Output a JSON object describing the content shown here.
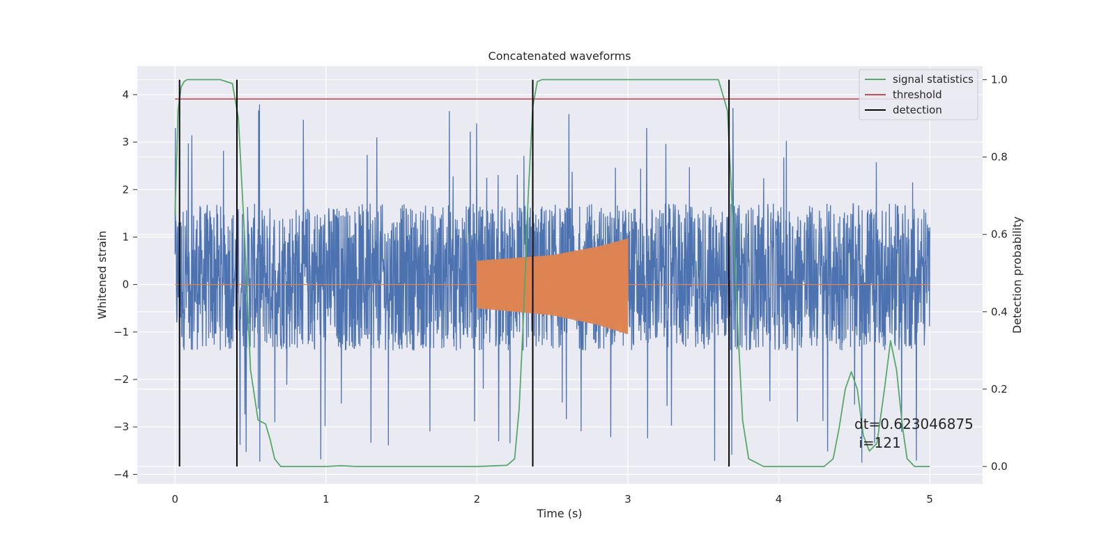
{
  "chart_data": {
    "type": "line",
    "title": "Concatenated waveforms",
    "xlabel": "Time (s)",
    "ylabel": "Whitened strain",
    "ylabel_right": "Detection probability",
    "xlim": [
      -0.25,
      5.35
    ],
    "ylim": [
      -4.2,
      4.6
    ],
    "ylim_right": [
      -0.045,
      1.035
    ],
    "x_ticks": [
      0,
      1,
      2,
      3,
      4,
      5
    ],
    "y_ticks": [
      -4,
      -3,
      -2,
      -1,
      0,
      1,
      2,
      3,
      4
    ],
    "y_ticks_right": [
      0.0,
      0.2,
      0.4,
      0.6,
      0.8,
      1.0
    ],
    "x_tick_labels": [
      "0",
      "1",
      "2",
      "3",
      "4",
      "5"
    ],
    "y_tick_labels": [
      "−4",
      "−3",
      "−2",
      "−1",
      "0",
      "1",
      "2",
      "3",
      "4"
    ],
    "y_tick_labels_right": [
      "0.0",
      "0.2",
      "0.4",
      "0.6",
      "0.8",
      "1.0"
    ],
    "grid": true,
    "legend_position": "top-right",
    "legend": [
      {
        "label": "signal statistics",
        "color": "#55a868"
      },
      {
        "label": "threshold",
        "color": "#c44e52"
      },
      {
        "label": "detection",
        "color": "#000000"
      }
    ],
    "annotation": {
      "line1": "dt=0.623046875",
      "line2": " i=121",
      "x": 4.5,
      "y_right": 0.07
    },
    "series": [
      {
        "axis": "left",
        "color": "#4c72b0",
        "kind": "noise",
        "x_range": [
          0,
          5
        ],
        "typical_amplitude": [
          -1.5,
          2.0
        ],
        "peak_range": [
          -3.8,
          3.85
        ]
      },
      {
        "axis": "left",
        "color": "#dd8452",
        "kind": "chirp",
        "x_range": [
          0,
          5
        ],
        "chirp_x_range": [
          2,
          3
        ],
        "envelope_top": [
          [
            2.0,
            0.5
          ],
          [
            2.5,
            0.62
          ],
          [
            2.8,
            0.8
          ],
          [
            3.0,
            0.97
          ]
        ],
        "envelope_bottom": [
          [
            2.0,
            -0.5
          ],
          [
            2.5,
            -0.65
          ],
          [
            2.8,
            -0.85
          ],
          [
            3.0,
            -1.05
          ]
        ],
        "baseline": 0
      },
      {
        "name": "signal statistics",
        "axis": "right",
        "color": "#55a868",
        "x": [
          0.0,
          0.02,
          0.04,
          0.06,
          0.08,
          0.1,
          0.3,
          0.38,
          0.42,
          0.46,
          0.5,
          0.55,
          0.6,
          0.63,
          0.66,
          0.7,
          0.8,
          1.0,
          1.1,
          1.2,
          1.5,
          2.0,
          2.2,
          2.25,
          2.28,
          2.31,
          2.34,
          2.37,
          2.4,
          2.43,
          2.5,
          3.0,
          3.6,
          3.66,
          3.7,
          3.73,
          3.76,
          3.8,
          3.9,
          4.3,
          4.36,
          4.4,
          4.44,
          4.48,
          4.52,
          4.56,
          4.6,
          4.65,
          4.7,
          4.74,
          4.78,
          4.82,
          4.85,
          4.9,
          5.0
        ],
        "y": [
          0.65,
          0.92,
          0.98,
          0.995,
          1.0,
          1.0,
          1.0,
          0.99,
          0.9,
          0.6,
          0.25,
          0.12,
          0.11,
          0.07,
          0.02,
          0.0,
          0.0,
          0.0,
          0.002,
          0.0,
          0.0,
          0.0,
          0.003,
          0.02,
          0.15,
          0.4,
          0.7,
          0.93,
          0.995,
          1.0,
          1.0,
          1.0,
          1.0,
          0.92,
          0.6,
          0.35,
          0.12,
          0.02,
          0.0,
          0.0,
          0.02,
          0.1,
          0.2,
          0.245,
          0.2,
          0.08,
          0.04,
          0.06,
          0.2,
          0.325,
          0.25,
          0.1,
          0.02,
          0.0,
          0.0
        ]
      },
      {
        "name": "threshold",
        "axis": "right",
        "color": "#c44e52",
        "x": [
          0,
          5
        ],
        "y": [
          0.95,
          0.95
        ]
      },
      {
        "name": "detection",
        "axis": "right",
        "color": "#000000",
        "kind": "vertical-lines",
        "x": [
          0.03,
          0.41,
          2.37,
          3.67
        ],
        "y_range": [
          0.0,
          1.0
        ]
      }
    ]
  }
}
